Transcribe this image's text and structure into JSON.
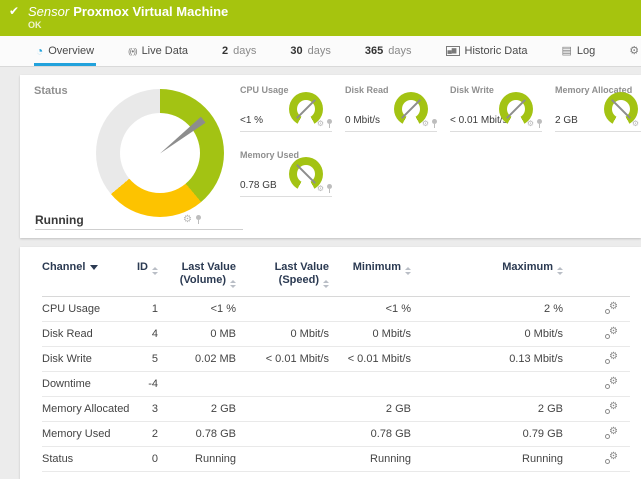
{
  "colors": {
    "brand_green": "#a6c40e",
    "accent_blue": "#22a2dc",
    "gauge_green": "#a3c313",
    "gauge_yellow": "#fdc300",
    "gauge_gray": "#e9e9e9"
  },
  "icons": {
    "check": "✔",
    "gear": "⚙"
  },
  "header": {
    "type_label": "Sensor",
    "title": "Proxmox Virtual Machine",
    "status": "OK"
  },
  "tabs": [
    {
      "name": "overview",
      "icon": "gauge-icon",
      "glyph": "◔",
      "label": "Overview",
      "active": true
    },
    {
      "name": "live-data",
      "icon": "live-data-icon",
      "glyph": "((•))",
      "label": "Live Data",
      "active": false
    },
    {
      "name": "2-days",
      "bold": "2",
      "label": "days",
      "active": false
    },
    {
      "name": "30-days",
      "bold": "30",
      "label": "days",
      "active": false
    },
    {
      "name": "365-days",
      "bold": "365",
      "label": "days",
      "active": false
    },
    {
      "name": "historic-data",
      "icon": "chart-icon",
      "glyph": "▄▆",
      "label": "Historic Data",
      "active": false
    },
    {
      "name": "log",
      "icon": "log-icon",
      "glyph": "▤",
      "label": "Log",
      "active": false
    },
    {
      "name": "settings",
      "icon": "gear-icon",
      "glyph": "⚙",
      "label": "Settings",
      "active": false
    }
  ],
  "status_panel": {
    "title": "Status",
    "value": "Running",
    "gauge": {
      "segments": [
        {
          "color": "green",
          "from": 0,
          "to": 140
        },
        {
          "color": "yellow",
          "from": 140,
          "to": 230
        },
        {
          "color": "gray",
          "from": 230,
          "to": 360
        }
      ],
      "needle_angle_deg": -38
    }
  },
  "mini_gauges": [
    {
      "label": "CPU Usage",
      "value": "<1 %",
      "needle_angle_deg": -45
    },
    {
      "label": "Disk Read",
      "value": "0 Mbit/s",
      "needle_angle_deg": -45
    },
    {
      "label": "Disk Write",
      "value": "< 0.01 Mbit/s",
      "needle_angle_deg": -45
    },
    {
      "label": "Memory Allocated",
      "value": "2 GB",
      "needle_angle_deg": 45
    },
    {
      "label": "Memory Used",
      "value": "0.78 GB",
      "needle_angle_deg": 45
    }
  ],
  "table": {
    "columns": [
      {
        "key": "channel",
        "label": "Channel",
        "sort": "desc"
      },
      {
        "key": "id",
        "label": "ID",
        "sort": "both"
      },
      {
        "key": "last_volume",
        "label": "Last Value",
        "label2": "(Volume)",
        "sort": "both"
      },
      {
        "key": "last_speed",
        "label": "Last Value",
        "label2": "(Speed)",
        "sort": "both"
      },
      {
        "key": "min",
        "label": "Minimum",
        "sort": "both"
      },
      {
        "key": "max",
        "label": "Maximum",
        "sort": "both"
      }
    ],
    "rows": [
      {
        "channel": "CPU Usage",
        "id": "1",
        "last_volume": "<1 %",
        "last_speed": "",
        "min": "<1 %",
        "max": "2 %"
      },
      {
        "channel": "Disk Read",
        "id": "4",
        "last_volume": "0 MB",
        "last_speed": "0 Mbit/s",
        "min": "0 Mbit/s",
        "max": "0 Mbit/s"
      },
      {
        "channel": "Disk Write",
        "id": "5",
        "last_volume": "0.02 MB",
        "last_speed": "< 0.01 Mbit/s",
        "min": "< 0.01 Mbit/s",
        "max": "0.13 Mbit/s"
      },
      {
        "channel": "Downtime",
        "id": "-4",
        "last_volume": "",
        "last_speed": "",
        "min": "",
        "max": ""
      },
      {
        "channel": "Memory Allocated",
        "id": "3",
        "last_volume": "2 GB",
        "last_speed": "",
        "min": "2 GB",
        "max": "2 GB"
      },
      {
        "channel": "Memory Used",
        "id": "2",
        "last_volume": "0.78 GB",
        "last_speed": "",
        "min": "0.78 GB",
        "max": "0.79 GB"
      },
      {
        "channel": "Status",
        "id": "0",
        "last_volume": "Running",
        "last_speed": "",
        "min": "Running",
        "max": "Running"
      }
    ]
  }
}
